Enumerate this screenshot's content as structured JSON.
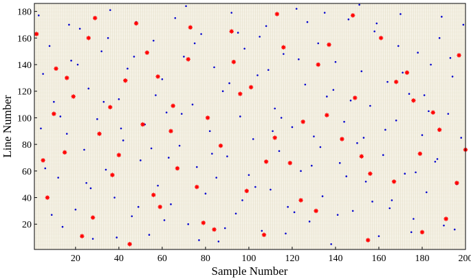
{
  "chart_data": {
    "type": "scatter",
    "xlabel": "Sample Number",
    "ylabel": "Line Number",
    "xlim": [
      1,
      200
    ],
    "ylim": [
      1,
      186
    ],
    "x_ticks": [
      20,
      40,
      60,
      80,
      100,
      120,
      140,
      160,
      180,
      200
    ],
    "y_ticks": [
      20,
      40,
      60,
      80,
      100,
      120,
      140,
      160,
      180
    ],
    "grid": true,
    "legend": "none",
    "series": [
      {
        "marker": "dot",
        "color": "#0000cc",
        "points": [
          [
            3,
            177
          ],
          [
            5,
            133
          ],
          [
            8,
            154
          ],
          [
            10,
            112
          ],
          [
            12,
            55
          ],
          [
            14,
            18
          ],
          [
            16,
            88
          ],
          [
            18,
            143
          ],
          [
            20,
            31
          ],
          [
            22,
            167
          ],
          [
            24,
            76
          ],
          [
            26,
            122
          ],
          [
            28,
            9
          ],
          [
            30,
            99
          ],
          [
            32,
            150
          ],
          [
            34,
            61
          ],
          [
            36,
            181
          ],
          [
            38,
            40
          ],
          [
            40,
            114
          ],
          [
            42,
            83
          ],
          [
            44,
            137
          ],
          [
            46,
            26
          ],
          [
            48,
            172
          ],
          [
            50,
            68
          ],
          [
            52,
            95
          ],
          [
            54,
            12
          ],
          [
            56,
            158
          ],
          [
            58,
            49
          ],
          [
            60,
            129
          ],
          [
            62,
            104
          ],
          [
            64,
            35
          ],
          [
            66,
            175
          ],
          [
            68,
            79
          ],
          [
            70,
            146
          ],
          [
            72,
            20
          ],
          [
            74,
            110
          ],
          [
            76,
            63
          ],
          [
            78,
            163
          ],
          [
            80,
            43
          ],
          [
            82,
            90
          ],
          [
            84,
            138
          ],
          [
            86,
            7
          ],
          [
            88,
            120
          ],
          [
            90,
            71
          ],
          [
            92,
            179
          ],
          [
            94,
            28
          ],
          [
            96,
            101
          ],
          [
            98,
            152
          ],
          [
            100,
            57
          ],
          [
            102,
            84
          ],
          [
            104,
            132
          ],
          [
            106,
            15
          ],
          [
            108,
            169
          ],
          [
            110,
            46
          ],
          [
            112,
            107
          ],
          [
            114,
            75
          ],
          [
            116,
            148
          ],
          [
            118,
            33
          ],
          [
            120,
            93
          ],
          [
            122,
            182
          ],
          [
            124,
            60
          ],
          [
            126,
            125
          ],
          [
            128,
            22
          ],
          [
            130,
            86
          ],
          [
            132,
            156
          ],
          [
            134,
            41
          ],
          [
            136,
            116
          ],
          [
            138,
            5
          ],
          [
            140,
            142
          ],
          [
            142,
            66
          ],
          [
            144,
            97
          ],
          [
            146,
            174
          ],
          [
            148,
            30
          ],
          [
            150,
            81
          ],
          [
            152,
            135
          ],
          [
            154,
            52
          ],
          [
            156,
            109
          ],
          [
            158,
            165
          ],
          [
            160,
            11
          ],
          [
            162,
            72
          ],
          [
            164,
            127
          ],
          [
            166,
            38
          ],
          [
            168,
            98
          ],
          [
            170,
            178
          ],
          [
            172,
            58
          ],
          [
            174,
            118
          ],
          [
            176,
            24
          ],
          [
            178,
            149
          ],
          [
            180,
            87
          ],
          [
            182,
            44
          ],
          [
            184,
            140
          ],
          [
            186,
            67
          ],
          [
            188,
            160
          ],
          [
            190,
            19
          ],
          [
            192,
            103
          ],
          [
            194,
            131
          ],
          [
            196,
            50
          ],
          [
            198,
            85
          ],
          [
            199,
            170
          ],
          [
            6,
            62
          ],
          [
            13,
            101
          ],
          [
            21,
            140
          ],
          [
            27,
            47
          ],
          [
            35,
            160
          ],
          [
            41,
            92
          ],
          [
            49,
            33
          ],
          [
            57,
            117
          ],
          [
            63,
            70
          ],
          [
            71,
            184
          ],
          [
            77,
            8
          ],
          [
            85,
            55
          ],
          [
            91,
            126
          ],
          [
            97,
            38
          ],
          [
            105,
            161
          ],
          [
            111,
            90
          ],
          [
            117,
            13
          ],
          [
            123,
            144
          ],
          [
            129,
            64
          ],
          [
            135,
            179
          ],
          [
            141,
            27
          ],
          [
            147,
            113
          ],
          [
            153,
            85
          ],
          [
            159,
            171
          ],
          [
            165,
            32
          ],
          [
            171,
            134
          ],
          [
            177,
            59
          ],
          [
            183,
            105
          ],
          [
            189,
            176
          ],
          [
            195,
            16
          ],
          [
            9,
            27
          ],
          [
            17,
            170
          ],
          [
            25,
            51
          ],
          [
            33,
            112
          ],
          [
            39,
            10
          ],
          [
            47,
            146
          ],
          [
            55,
            77
          ],
          [
            61,
            23
          ],
          [
            69,
            103
          ],
          [
            75,
            156
          ],
          [
            83,
            73
          ],
          [
            89,
            17
          ],
          [
            95,
            164
          ],
          [
            103,
            48
          ],
          [
            109,
            136
          ],
          [
            115,
            100
          ],
          [
            121,
            29
          ],
          [
            127,
            172
          ],
          [
            133,
            78
          ],
          [
            139,
            121
          ],
          [
            145,
            56
          ],
          [
            151,
            185
          ],
          [
            157,
            37
          ],
          [
            163,
            91
          ],
          [
            169,
            154
          ],
          [
            175,
            14
          ],
          [
            181,
            117
          ],
          [
            187,
            69
          ],
          [
            193,
            145
          ],
          [
            4,
            92
          ]
        ]
      },
      {
        "marker": "asterisk",
        "color": "#ff0000",
        "points": [
          [
            2,
            163
          ],
          [
            7,
            40
          ],
          [
            11,
            137
          ],
          [
            15,
            74
          ],
          [
            19,
            116
          ],
          [
            23,
            11
          ],
          [
            29,
            175
          ],
          [
            31,
            88
          ],
          [
            37,
            57
          ],
          [
            43,
            128
          ],
          [
            45,
            5
          ],
          [
            51,
            95
          ],
          [
            53,
            149
          ],
          [
            59,
            33
          ],
          [
            65,
            109
          ],
          [
            67,
            62
          ],
          [
            73,
            168
          ],
          [
            79,
            21
          ],
          [
            81,
            100
          ],
          [
            87,
            79
          ],
          [
            93,
            142
          ],
          [
            99,
            45
          ],
          [
            101,
            123
          ],
          [
            107,
            12
          ],
          [
            113,
            178
          ],
          [
            119,
            66
          ],
          [
            125,
            97
          ],
          [
            131,
            30
          ],
          [
            137,
            155
          ],
          [
            143,
            84
          ],
          [
            149,
            115
          ],
          [
            155,
            8
          ],
          [
            161,
            160
          ],
          [
            167,
            52
          ],
          [
            173,
            134
          ],
          [
            179,
            73
          ],
          [
            185,
            104
          ],
          [
            191,
            24
          ],
          [
            197,
            147
          ],
          [
            200,
            76
          ],
          [
            5,
            68
          ],
          [
            16,
            130
          ],
          [
            28,
            25
          ],
          [
            36,
            108
          ],
          [
            48,
            171
          ],
          [
            56,
            42
          ],
          [
            64,
            90
          ],
          [
            72,
            144
          ],
          [
            84,
            16
          ],
          [
            96,
            118
          ],
          [
            108,
            67
          ],
          [
            116,
            153
          ],
          [
            124,
            38
          ],
          [
            136,
            102
          ],
          [
            148,
            177
          ],
          [
            156,
            58
          ],
          [
            168,
            127
          ],
          [
            180,
            14
          ],
          [
            188,
            91
          ],
          [
            196,
            51
          ],
          [
            10,
            103
          ],
          [
            26,
            160
          ],
          [
            40,
            72
          ],
          [
            58,
            131
          ],
          [
            76,
            48
          ],
          [
            92,
            165
          ],
          [
            112,
            85
          ],
          [
            132,
            140
          ],
          [
            152,
            71
          ],
          [
            176,
            113
          ]
        ]
      }
    ]
  }
}
